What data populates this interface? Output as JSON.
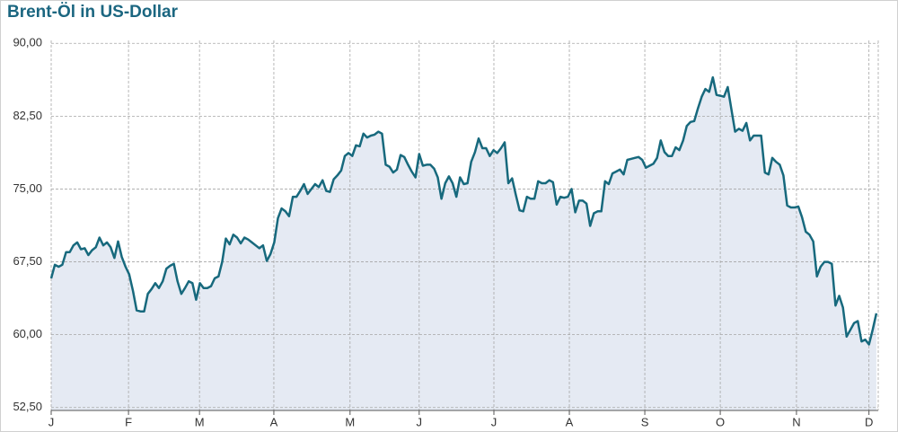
{
  "chart_data": {
    "type": "line",
    "title": "Brent-Öl in US-Dollar",
    "color": "#17697d",
    "fill": "#e5eaf3",
    "grid": true,
    "values": [
      65.8,
      67.2,
      67.0,
      67.2,
      68.5,
      68.5,
      69.2,
      69.5,
      68.8,
      68.9,
      68.2,
      68.7,
      69.0,
      70.0,
      69.2,
      69.5,
      69.0,
      67.9,
      69.6,
      68.0,
      67.0,
      66.2,
      64.5,
      62.5,
      62.4,
      62.4,
      64.2,
      64.7,
      65.3,
      64.8,
      65.5,
      66.8,
      67.1,
      67.3,
      65.5,
      64.2,
      64.8,
      65.5,
      65.3,
      63.6,
      65.3,
      64.8,
      64.8,
      65.0,
      65.8,
      66.0,
      67.5,
      69.9,
      69.3,
      70.3,
      70.0,
      69.4,
      70.0,
      69.8,
      69.5,
      69.2,
      68.9,
      69.2,
      67.6,
      68.3,
      69.5,
      72.0,
      73.0,
      72.7,
      72.2,
      74.2,
      74.2,
      74.8,
      75.5,
      74.5,
      75.0,
      75.5,
      75.2,
      75.9,
      74.8,
      74.7,
      76.0,
      76.4,
      76.9,
      78.4,
      78.7,
      78.4,
      79.5,
      79.4,
      80.7,
      80.3,
      80.5,
      80.6,
      80.9,
      80.7,
      77.5,
      77.3,
      76.7,
      77.0,
      78.5,
      78.3,
      77.5,
      76.8,
      76.2,
      78.6,
      77.4,
      77.5,
      77.5,
      77.1,
      76.2,
      74.0,
      75.6,
      76.3,
      75.6,
      74.2,
      76.2,
      75.5,
      75.6,
      77.8,
      78.8,
      80.2,
      79.2,
      79.2,
      78.4,
      79.0,
      78.7,
      79.2,
      79.8,
      75.6,
      76.1,
      74.4,
      72.8,
      72.7,
      74.2,
      74.0,
      74.0,
      75.8,
      75.6,
      75.6,
      75.9,
      75.7,
      73.4,
      74.2,
      74.1,
      74.2,
      75.0,
      72.6,
      73.8,
      73.8,
      73.5,
      71.2,
      72.5,
      72.7,
      72.7,
      75.8,
      75.5,
      76.6,
      76.8,
      77.0,
      76.5,
      78.0,
      78.1,
      78.2,
      78.3,
      78.0,
      77.2,
      77.4,
      77.6,
      78.2,
      80.0,
      78.8,
      78.4,
      78.4,
      79.3,
      79.0,
      80.0,
      81.5,
      81.9,
      82.0,
      83.3,
      84.5,
      85.3,
      85.0,
      86.5,
      84.7,
      84.6,
      84.5,
      85.5,
      83.2,
      80.9,
      81.2,
      81.0,
      81.8,
      80.0,
      80.5,
      80.5,
      80.5,
      76.7,
      76.5,
      78.2,
      77.8,
      77.5,
      76.4,
      73.3,
      73.1,
      73.1,
      73.2,
      72.1,
      70.6,
      70.3,
      69.6,
      66.0,
      67.0,
      67.5,
      67.5,
      67.3,
      63.0,
      64.0,
      62.8,
      59.8,
      60.5,
      61.2,
      61.4,
      59.3,
      59.5,
      59.0,
      60.5,
      62.2
    ],
    "xlim": [
      0,
      222.5
    ],
    "xticks": [
      {
        "value": 0,
        "label": "J"
      },
      {
        "value": 20.8,
        "label": "F"
      },
      {
        "value": 39.9,
        "label": "M"
      },
      {
        "value": 59.9,
        "label": "A"
      },
      {
        "value": 80.4,
        "label": "M"
      },
      {
        "value": 99.0,
        "label": "J"
      },
      {
        "value": 119.1,
        "label": "J"
      },
      {
        "value": 139.4,
        "label": "A"
      },
      {
        "value": 159.7,
        "label": "S"
      },
      {
        "value": 180.0,
        "label": "O"
      },
      {
        "value": 200.5,
        "label": "N"
      },
      {
        "value": 220.0,
        "label": "D"
      }
    ],
    "ylim": [
      52.2,
      90.3
    ],
    "yticks": [
      {
        "value": 52.5,
        "label": "52,50"
      },
      {
        "value": 60,
        "label": "60,00"
      },
      {
        "value": 67.5,
        "label": "67,50"
      },
      {
        "value": 75,
        "label": "75,00"
      },
      {
        "value": 82.5,
        "label": "82,50"
      },
      {
        "value": 90,
        "label": "90,00"
      }
    ]
  }
}
